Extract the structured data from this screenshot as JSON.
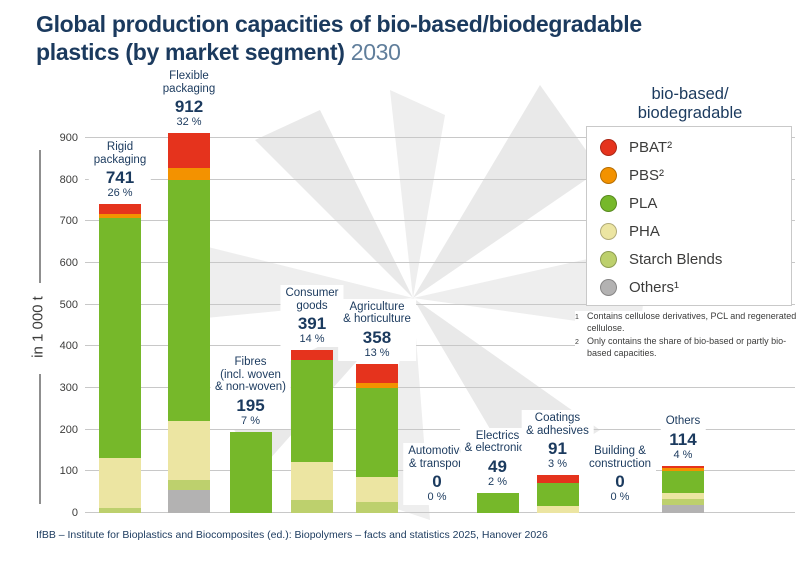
{
  "title": {
    "line1": "Global production capacities of bio-based/biodegradable",
    "line2_bold": "plastics (by market segment)",
    "line2_year": "2030"
  },
  "chart_data": {
    "type": "bar",
    "stacked": true,
    "title": "Global production capacities of bio-based/biodegradable plastics (by market segment) 2030",
    "ylabel": "in 1 000 t",
    "ylim": [
      0,
      900
    ],
    "yticks": [
      0,
      100,
      200,
      300,
      400,
      500,
      600,
      700,
      800,
      900
    ],
    "grid": true,
    "legend_position": "right",
    "categories": [
      {
        "name": "Rigid\npackaging",
        "total": 741,
        "percent": "26 %"
      },
      {
        "name": "Flexible\npackaging",
        "total": 912,
        "percent": "32 %"
      },
      {
        "name": "Fibres\n(incl. woven\n& non-woven)",
        "total": 195,
        "percent": "7 %"
      },
      {
        "name": "Consumer\ngoods",
        "total": 391,
        "percent": "14 %"
      },
      {
        "name": "Agriculture\n& horticulture",
        "total": 358,
        "percent": "13 %"
      },
      {
        "name": "Automotive\n& transport",
        "total": 0,
        "percent": "0 %"
      },
      {
        "name": "Electrics\n& electronics",
        "total": 49,
        "percent": "2 %"
      },
      {
        "name": "Coatings\n& adhesives",
        "total": 91,
        "percent": "3 %"
      },
      {
        "name": "Building &\nconstruction",
        "total": 0,
        "percent": "0 %"
      },
      {
        "name": "Others",
        "total": 114,
        "percent": "4 %"
      }
    ],
    "series_bottom_to_top": [
      {
        "name": "Others",
        "color": "#b3b2b2",
        "values": [
          0,
          55,
          0,
          0,
          0,
          0,
          0,
          0,
          0,
          19
        ]
      },
      {
        "name": "Starch Blends",
        "color": "#bdd06d",
        "values": [
          13,
          25,
          0,
          31,
          27,
          0,
          0,
          0,
          0,
          15
        ]
      },
      {
        "name": "PHA",
        "color": "#ece5a2",
        "values": [
          119,
          140,
          0,
          91,
          59,
          0,
          0,
          18,
          0,
          14
        ]
      },
      {
        "name": "PLA",
        "color": "#76b82a",
        "values": [
          576,
          580,
          195,
          245,
          214,
          0,
          49,
          54,
          0,
          53
        ]
      },
      {
        "name": "PBS",
        "color": "#f39200",
        "values": [
          10,
          27,
          0,
          0,
          12,
          0,
          0,
          0,
          0,
          6
        ]
      },
      {
        "name": "PBAT",
        "color": "#e5331d",
        "values": [
          23,
          85,
          0,
          24,
          46,
          0,
          0,
          19,
          0,
          7
        ]
      }
    ]
  },
  "y_axis": {
    "unit_label": "in 1 000 t"
  },
  "legend": {
    "title": "bio-based/\nbiodegradable",
    "items": [
      {
        "label": "PBAT²",
        "color": "#e5331d"
      },
      {
        "label": "PBS²",
        "color": "#f39200"
      },
      {
        "label": "PLA",
        "color": "#76b82a"
      },
      {
        "label": "PHA",
        "color": "#ece5a2"
      },
      {
        "label": "Starch Blends",
        "color": "#bdd06d"
      },
      {
        "label": "Others¹",
        "color": "#b3b2b2"
      }
    ]
  },
  "footnotes": {
    "items": [
      {
        "marker": "1",
        "text": "Contains cellulose derivatives, PCL and regenerated cellulose."
      },
      {
        "marker": "2",
        "text": "Only contains the share of bio-based or partly bio-based capacities."
      }
    ]
  },
  "footer": {
    "source": "IfBB – Institute for Bioplastics and Biocomposites (ed.): Biopolymers – facts and statistics 2025, Hanover 2026"
  },
  "colors": {
    "title_navy": "#1b3a5e",
    "title_year": "#607e9b",
    "text_gray": "#3c3c3b",
    "gridline": "#c8c8c8",
    "watermark": "#eeeeee"
  }
}
